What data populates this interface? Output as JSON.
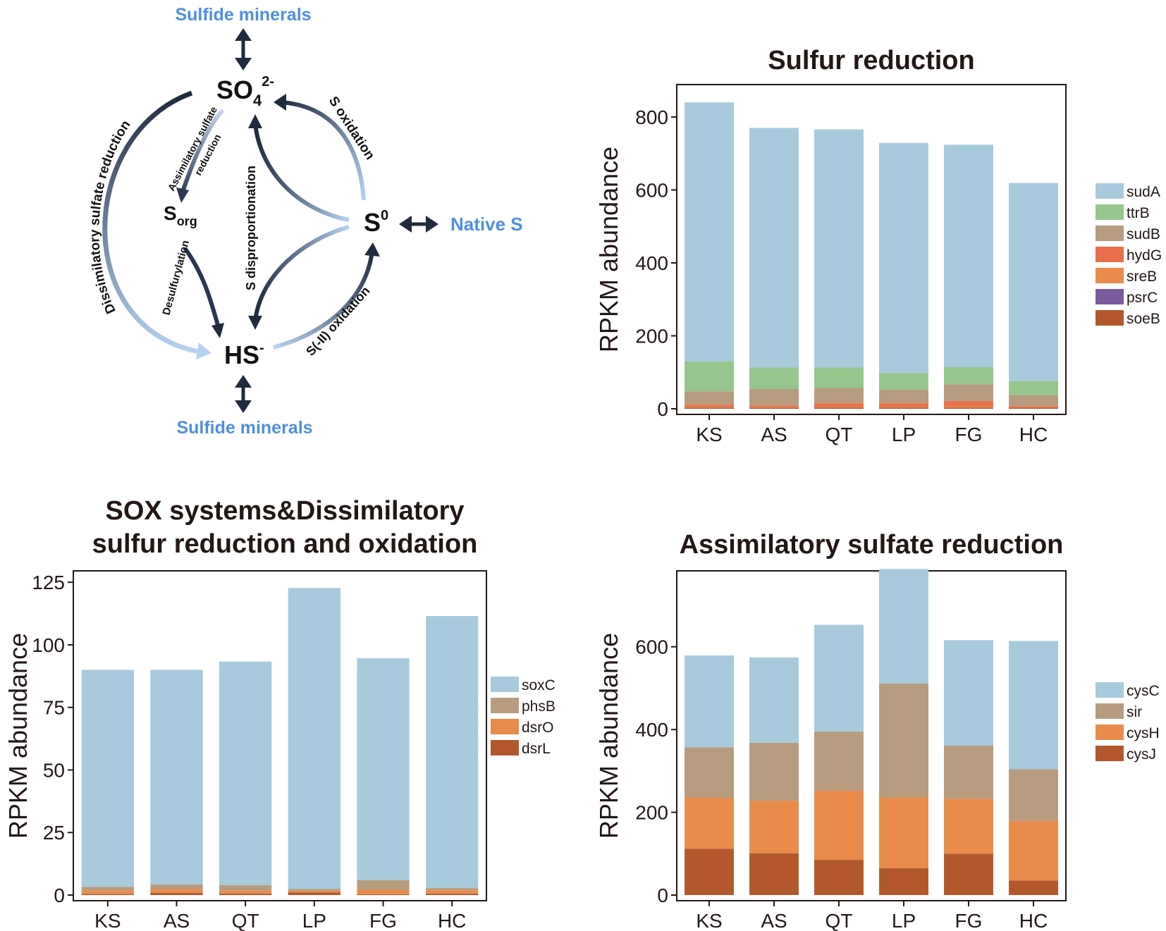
{
  "diagram": {
    "sulfide_minerals_top": "Sulfide minerals",
    "sulfide_minerals_bottom": "Sulfide minerals",
    "native_s": "Native S",
    "so4": {
      "base": "SO",
      "sub": "4",
      "sup": "2-"
    },
    "sorg": {
      "base": "S",
      "sub": "org"
    },
    "s0": {
      "base": "S",
      "sup": "0"
    },
    "hs": {
      "base": "HS",
      "sup": "-"
    },
    "labels": {
      "dissimilatory": "Dissimilatory sulfate reduction",
      "assimilatory_1": "Assimilatory sulfate",
      "assimilatory_2": "reduction",
      "desulfurylation": "Desulfurylation",
      "disproportionation": "S disproportionation",
      "s_oxidation": "S oxidation",
      "s_ii_oxidation": "S(-II) oxidation"
    }
  },
  "chart_data": [
    {
      "id": "sulfur",
      "type": "bar",
      "stacked": true,
      "title": [
        "Sulfur reduction"
      ],
      "ylabel": "RPKM abundance",
      "categories": [
        "KS",
        "AS",
        "QT",
        "LP",
        "FG",
        "HC"
      ],
      "ylim": [
        0,
        885
      ],
      "yticks": [
        0,
        200,
        400,
        600,
        800
      ],
      "series": [
        {
          "name": "soeB",
          "color": "#b3582c",
          "values": [
            3,
            3,
            3,
            3,
            3,
            3
          ]
        },
        {
          "name": "psrC",
          "color": "#7b5a9e",
          "values": [
            0,
            0,
            0,
            0,
            0,
            0
          ]
        },
        {
          "name": "sreB",
          "color": "#e88b4b",
          "values": [
            2,
            2,
            2,
            2,
            3,
            1
          ]
        },
        {
          "name": "hydG",
          "color": "#e96f4a",
          "values": [
            6,
            4,
            10,
            10,
            15,
            3
          ]
        },
        {
          "name": "sudB",
          "color": "#b89c7f",
          "values": [
            37,
            45,
            42,
            38,
            46,
            31
          ]
        },
        {
          "name": "ttrB",
          "color": "#95c68c",
          "values": [
            82,
            59,
            56,
            45,
            47,
            38
          ]
        },
        {
          "name": "sudA",
          "color": "#a7cadd",
          "values": [
            710,
            657,
            653,
            631,
            610,
            543
          ]
        }
      ]
    },
    {
      "id": "sox",
      "type": "bar",
      "stacked": true,
      "title": [
        "SOX systems&Dissimilatory",
        "sulfur reduction and oxidation"
      ],
      "ylabel": "RPKM abundance",
      "categories": [
        "KS",
        "AS",
        "QT",
        "LP",
        "FG",
        "HC"
      ],
      "ylim": [
        0,
        129
      ],
      "yticks": [
        0,
        25,
        50,
        75,
        100,
        125
      ],
      "series": [
        {
          "name": "dsrL",
          "color": "#b3582c",
          "values": [
            0.4,
            0.9,
            0.6,
            1.0,
            0.3,
            0.6
          ]
        },
        {
          "name": "dsrO",
          "color": "#e88b4b",
          "values": [
            1.4,
            1.5,
            1.2,
            0.7,
            1.8,
            1.3
          ]
        },
        {
          "name": "phsB",
          "color": "#b89c7f",
          "values": [
            1.5,
            1.9,
            2.2,
            0.7,
            3.9,
            0.9
          ]
        },
        {
          "name": "soxC",
          "color": "#a7cadd",
          "values": [
            86.7,
            85.7,
            89.3,
            120.3,
            88.6,
            108.7
          ]
        }
      ]
    },
    {
      "id": "assim",
      "type": "bar",
      "stacked": true,
      "title": [
        "Assimilatory sulfate reduction"
      ],
      "ylabel": "RPKM abundance",
      "categories": [
        "KS",
        "AS",
        "QT",
        "LP",
        "FG",
        "HC"
      ],
      "ylim": [
        0,
        780
      ],
      "yticks": [
        0,
        200,
        400,
        600
      ],
      "series": [
        {
          "name": "cysJ",
          "color": "#b3582c",
          "values": [
            112,
            101,
            85,
            65,
            100,
            35
          ]
        },
        {
          "name": "cysH",
          "color": "#e88b4b",
          "values": [
            123,
            127,
            167,
            171,
            133,
            144
          ]
        },
        {
          "name": "sir",
          "color": "#b89c7f",
          "values": [
            122,
            140,
            143,
            275,
            128,
            125
          ]
        },
        {
          "name": "cysC",
          "color": "#a7cadd",
          "values": [
            222,
            206,
            258,
            277,
            255,
            310
          ]
        }
      ]
    }
  ]
}
